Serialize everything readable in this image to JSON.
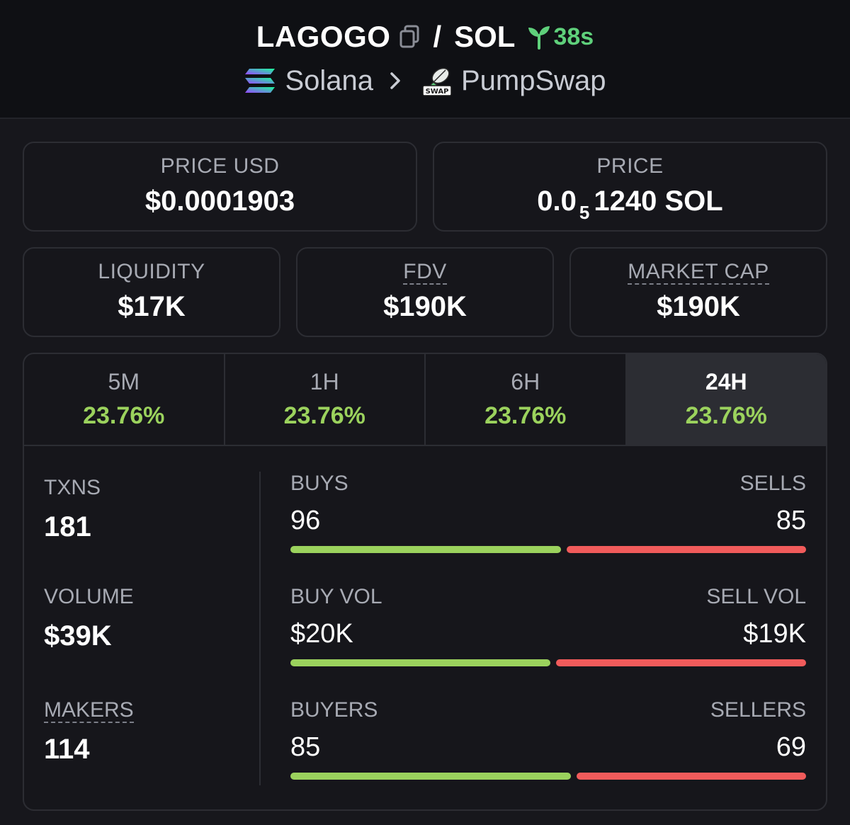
{
  "header": {
    "base_symbol": "LAGOGO",
    "slash": "/",
    "quote_symbol": "SOL",
    "age": "38s",
    "chain": "Solana",
    "dex": "PumpSwap",
    "dex_badge": "SWAP"
  },
  "price_usd": {
    "label": "PRICE USD",
    "value": "$0.0001903"
  },
  "price_native": {
    "label": "PRICE",
    "prefix": "0.0",
    "zero_count": "5",
    "rest": "1240 SOL"
  },
  "liquidity": {
    "label": "LIQUIDITY",
    "value": "$17K"
  },
  "fdv": {
    "label": "FDV",
    "value": "$190K"
  },
  "market_cap": {
    "label": "MARKET CAP",
    "value": "$190K"
  },
  "tabs": [
    {
      "label": "5M",
      "change": "23.76%"
    },
    {
      "label": "1H",
      "change": "23.76%"
    },
    {
      "label": "6H",
      "change": "23.76%"
    },
    {
      "label": "24H",
      "change": "23.76%",
      "active": true
    }
  ],
  "metrics": {
    "txns": {
      "label": "TXNS",
      "value": "181"
    },
    "volume": {
      "label": "VOLUME",
      "value": "$39K"
    },
    "makers": {
      "label": "MAKERS",
      "value": "114"
    }
  },
  "pairs": {
    "buys_sells": {
      "left_label": "BUYS",
      "right_label": "SELLS",
      "left_value": "96",
      "right_value": "85",
      "buy_share": 0.53
    },
    "volume": {
      "left_label": "BUY VOL",
      "right_label": "SELL VOL",
      "left_value": "$20K",
      "right_value": "$19K",
      "buy_share": 0.51
    },
    "buyers_sellers": {
      "left_label": "BUYERS",
      "right_label": "SELLERS",
      "left_value": "85",
      "right_value": "69",
      "buy_share": 0.55
    }
  },
  "colors": {
    "positive": "#9bd25d",
    "negative": "#f15b5b",
    "age": "#5fd07b",
    "background": "#17171c"
  },
  "icons": [
    "copy-icon",
    "sprout-icon",
    "solana-icon",
    "chevron-right-icon",
    "pumpswap-icon"
  ]
}
